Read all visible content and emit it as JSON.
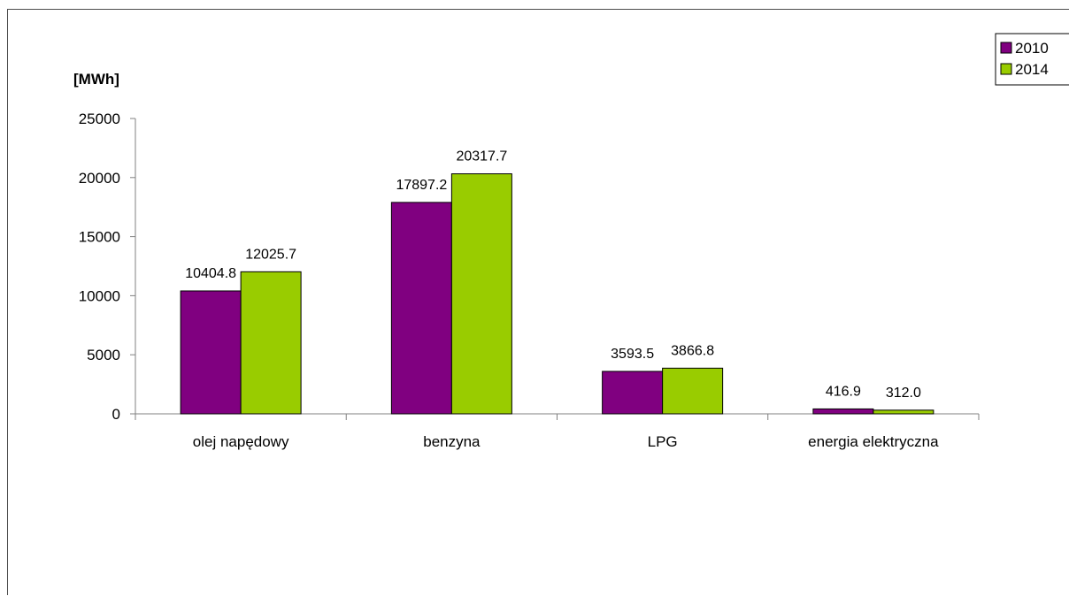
{
  "chart_data": {
    "type": "bar",
    "unit_label": "[MWh]",
    "categories": [
      "olej napędowy",
      "benzyna",
      "LPG",
      "energia elektryczna"
    ],
    "series": [
      {
        "name": "2010",
        "color": "#800080",
        "values": [
          10404.8,
          17897.2,
          3593.5,
          416.9
        ],
        "labels": [
          "10404.8",
          "17897.2",
          "3593.5",
          "416.9"
        ]
      },
      {
        "name": "2014",
        "color": "#99CC00",
        "values": [
          12025.7,
          20317.7,
          3866.8,
          312.0
        ],
        "labels": [
          "12025.7",
          "20317.7",
          "3866.8",
          "312.0"
        ]
      }
    ],
    "ylim": [
      0,
      25000
    ],
    "yticks": [
      "0",
      "5000",
      "10000",
      "15000",
      "20000",
      "25000"
    ],
    "ytick_values": [
      0,
      5000,
      10000,
      15000,
      20000,
      25000
    ],
    "grid": false,
    "legend_position": "top-right"
  }
}
